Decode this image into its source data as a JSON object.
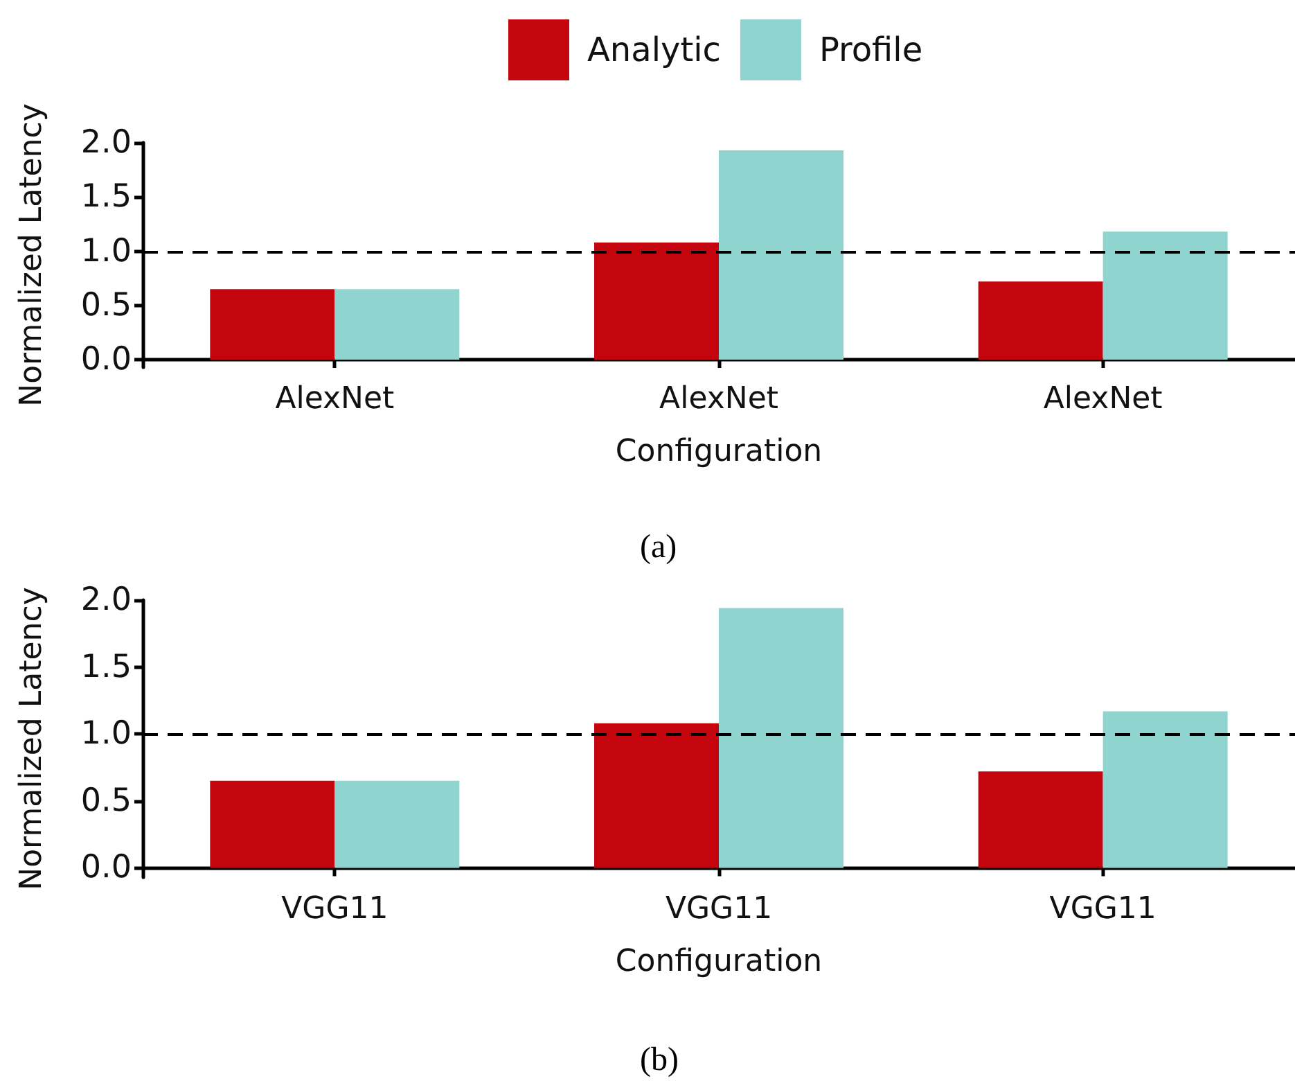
{
  "chart_data": [
    {
      "type": "bar",
      "categories": [
        "AlexNet",
        "AlexNet",
        "AlexNet"
      ],
      "xlabel": "Configuration",
      "ylabel": "Normalized Latency",
      "series": [
        {
          "name": "Analytic",
          "color": "#c4050e",
          "values": [
            0.65,
            1.08,
            0.72
          ]
        },
        {
          "name": "Profile",
          "color": "#8fd4ce",
          "values": [
            0.65,
            1.93,
            1.18
          ]
        }
      ],
      "ylim": [
        -0.07,
        2.0
      ],
      "yticks": [
        {
          "value": 0,
          "label": "0.0"
        },
        {
          "value": 0.5,
          "label": "0.5"
        },
        {
          "value": 1,
          "label": "1.0"
        },
        {
          "value": 1.5,
          "label": "1.5"
        },
        {
          "value": 2,
          "label": "2.0"
        }
      ],
      "ref_lines": [
        {
          "axis": "y",
          "value": 1,
          "color": "#000000",
          "line_style": "dashed"
        }
      ],
      "grid": false,
      "legend": "top",
      "annotations": [
        "(a)"
      ]
    },
    {
      "type": "bar",
      "categories": [
        "VGG11",
        "VGG11",
        "VGG11"
      ],
      "xlabel": "Configuration",
      "ylabel": "Normalized Latency",
      "series": [
        {
          "color": "#c4050e",
          "values": [
            0.65,
            1.08,
            0.72
          ]
        },
        {
          "color": "#8fd4ce",
          "values": [
            0.65,
            1.94,
            1.17
          ]
        }
      ],
      "ylim": [
        -0.07,
        2.0
      ],
      "yticks": [
        {
          "value": 0,
          "label": "0.0"
        },
        {
          "value": 0.5,
          "label": "0.5"
        },
        {
          "value": 1,
          "label": "1.0"
        },
        {
          "value": 1.5,
          "label": "1.5"
        },
        {
          "value": 2,
          "label": "2.0"
        }
      ],
      "ref_lines": [
        {
          "axis": "y",
          "value": 1,
          "color": "#000000",
          "line_style": "dashed"
        }
      ],
      "grid": false,
      "legend": false,
      "annotations": [
        "(b)"
      ]
    }
  ]
}
